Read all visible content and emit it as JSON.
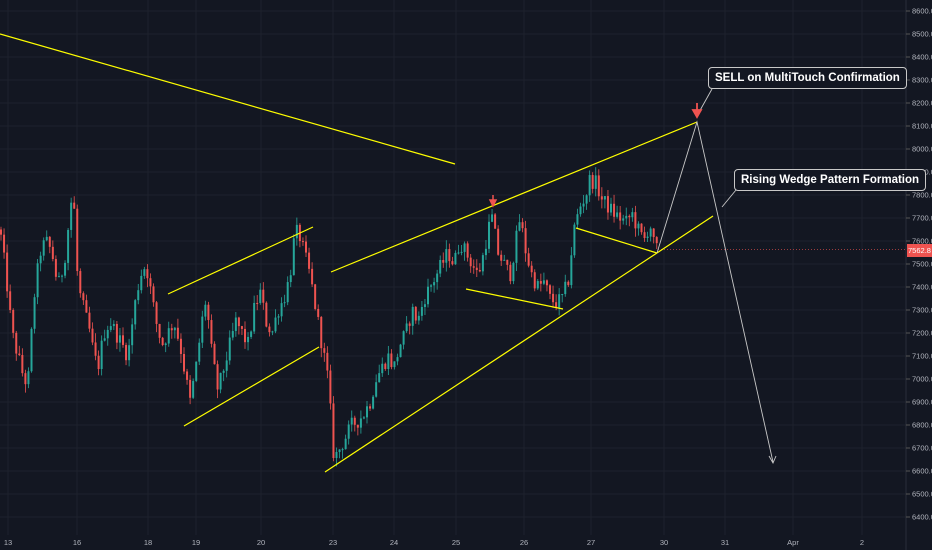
{
  "colors": {
    "background": "#131722",
    "up": "#26a69a",
    "down": "#ef5350",
    "trendline": "#ffff00",
    "projection": "#c8c8c8",
    "axis_text": "#b2b5be",
    "grid": "#1e222d"
  },
  "annotations": {
    "sell": "SELL on MultiTouch Confirmation",
    "wedge": "Rising Wedge Pattern Formation"
  },
  "last_price": "7562.8",
  "chart_data": {
    "type": "candlestick",
    "title": "",
    "xlabel": "",
    "ylabel": "",
    "ylim": [
      6300,
      8650
    ],
    "x_ticks": [
      "13",
      "16",
      "18",
      "19",
      "20",
      "23",
      "24",
      "25",
      "26",
      "27",
      "30",
      "31",
      "Apr",
      "2"
    ],
    "y_ticks": [
      6400,
      6500,
      6600,
      6700,
      6800,
      6900,
      7000,
      7100,
      7200,
      7300,
      7400,
      7500,
      7600,
      7700,
      7800,
      7900,
      8000,
      8100,
      8200,
      8300,
      8400,
      8500,
      8600
    ],
    "last_price": 7562.8,
    "price_path": [
      [
        0,
        7650
      ],
      [
        6,
        7450
      ],
      [
        12,
        7200
      ],
      [
        18,
        7100
      ],
      [
        24,
        7000
      ],
      [
        28,
        6980
      ],
      [
        34,
        7350
      ],
      [
        40,
        7550
      ],
      [
        46,
        7600
      ],
      [
        52,
        7550
      ],
      [
        58,
        7400
      ],
      [
        64,
        7500
      ],
      [
        68,
        7650
      ],
      [
        72,
        7800
      ],
      [
        74,
        7750
      ],
      [
        78,
        7400
      ],
      [
        84,
        7300
      ],
      [
        90,
        7200
      ],
      [
        94,
        7100
      ],
      [
        98,
        7050
      ],
      [
        104,
        7200
      ],
      [
        110,
        7250
      ],
      [
        116,
        7200
      ],
      [
        122,
        7150
      ],
      [
        128,
        7100
      ],
      [
        134,
        7300
      ],
      [
        140,
        7450
      ],
      [
        146,
        7500
      ],
      [
        150,
        7400
      ],
      [
        156,
        7250
      ],
      [
        162,
        7150
      ],
      [
        168,
        7200
      ],
      [
        174,
        7250
      ],
      [
        180,
        7150
      ],
      [
        186,
        7000
      ],
      [
        190,
        6900
      ],
      [
        196,
        7050
      ],
      [
        202,
        7250
      ],
      [
        206,
        7350
      ],
      [
        212,
        7100
      ],
      [
        218,
        6950
      ],
      [
        224,
        7050
      ],
      [
        230,
        7150
      ],
      [
        236,
        7250
      ],
      [
        242,
        7200
      ],
      [
        248,
        7150
      ],
      [
        254,
        7300
      ],
      [
        260,
        7380
      ],
      [
        266,
        7250
      ],
      [
        272,
        7200
      ],
      [
        278,
        7300
      ],
      [
        284,
        7350
      ],
      [
        290,
        7450
      ],
      [
        294,
        7600
      ],
      [
        298,
        7650
      ],
      [
        304,
        7550
      ],
      [
        310,
        7450
      ],
      [
        316,
        7300
      ],
      [
        322,
        7150
      ],
      [
        328,
        7000
      ],
      [
        334,
        6650
      ],
      [
        340,
        6700
      ],
      [
        346,
        6750
      ],
      [
        352,
        6800
      ],
      [
        358,
        6820
      ],
      [
        364,
        6850
      ],
      [
        370,
        6900
      ],
      [
        376,
        7000
      ],
      [
        382,
        7050
      ],
      [
        388,
        7100
      ],
      [
        394,
        7050
      ],
      [
        400,
        7150
      ],
      [
        406,
        7200
      ],
      [
        412,
        7300
      ],
      [
        418,
        7250
      ],
      [
        424,
        7350
      ],
      [
        430,
        7400
      ],
      [
        436,
        7450
      ],
      [
        442,
        7500
      ],
      [
        448,
        7550
      ],
      [
        454,
        7500
      ],
      [
        460,
        7600
      ],
      [
        466,
        7550
      ],
      [
        472,
        7500
      ],
      [
        478,
        7450
      ],
      [
        484,
        7550
      ],
      [
        488,
        7650
      ],
      [
        492,
        7700
      ],
      [
        498,
        7550
      ],
      [
        504,
        7500
      ],
      [
        510,
        7450
      ],
      [
        516,
        7600
      ],
      [
        520,
        7700
      ],
      [
        526,
        7550
      ],
      [
        532,
        7450
      ],
      [
        538,
        7400
      ],
      [
        544,
        7420
      ],
      [
        550,
        7350
      ],
      [
        556,
        7330
      ],
      [
        562,
        7350
      ],
      [
        568,
        7420
      ],
      [
        574,
        7650
      ],
      [
        580,
        7750
      ],
      [
        586,
        7800
      ],
      [
        590,
        7870
      ],
      [
        596,
        7850
      ],
      [
        602,
        7780
      ],
      [
        608,
        7750
      ],
      [
        614,
        7720
      ],
      [
        620,
        7700
      ],
      [
        626,
        7680
      ],
      [
        632,
        7720
      ],
      [
        638,
        7650
      ],
      [
        644,
        7600
      ],
      [
        650,
        7680
      ],
      [
        654,
        7580
      ],
      [
        658,
        7560
      ]
    ]
  }
}
